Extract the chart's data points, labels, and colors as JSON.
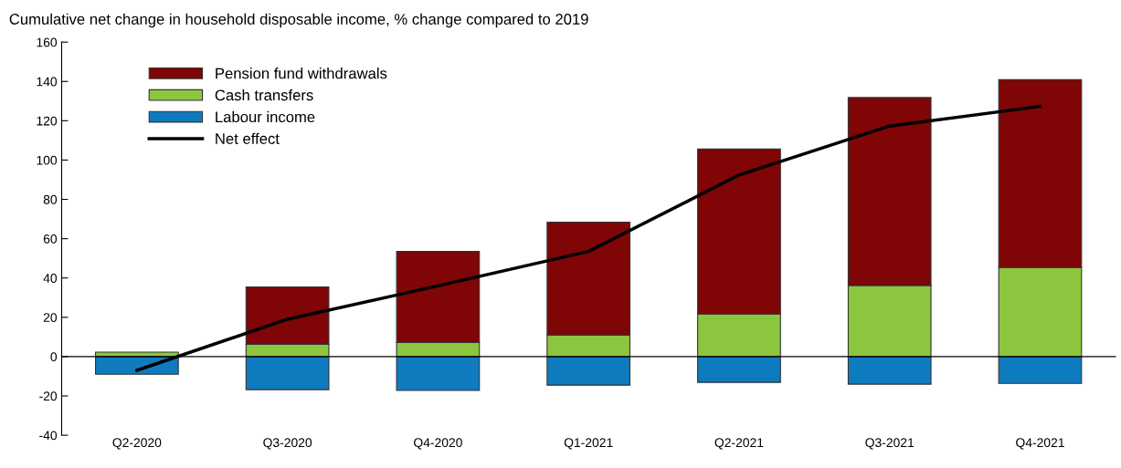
{
  "chart_data": {
    "type": "bar",
    "stacked": true,
    "title": "Cumulative net change in household disposable income, % change compared to 2019",
    "categories": [
      "Q2-2020",
      "Q3-2020",
      "Q4-2020",
      "Q1-2021",
      "Q2-2021",
      "Q3-2021",
      "Q4-2021"
    ],
    "series": [
      {
        "name": "Labour income",
        "color": "#0f7bbf",
        "values": [
          -9,
          -16.8,
          -17.2,
          -14.5,
          -13.1,
          -14,
          -13.6
        ]
      },
      {
        "name": "Cash transfers",
        "color": "#8cc63f",
        "values": [
          2.3,
          6.3,
          7.2,
          10.9,
          21.7,
          36.2,
          45.3
        ]
      },
      {
        "name": "Pension fund withdrawals",
        "color": "#7f0506",
        "values": [
          null,
          29.1,
          46.3,
          57.5,
          83.9,
          95.6,
          95.6
        ]
      },
      {
        "name": "Net effect",
        "type": "line",
        "color": "#000000",
        "values": [
          -7,
          19,
          36,
          53.5,
          92.4,
          117.3,
          127.3
        ]
      }
    ],
    "ylim": [
      -40,
      160
    ],
    "yticks": [
      -40,
      -20,
      0,
      20,
      40,
      60,
      80,
      100,
      120,
      140,
      160
    ],
    "legend": "top left",
    "marker": "none",
    "line_style": "solid"
  }
}
